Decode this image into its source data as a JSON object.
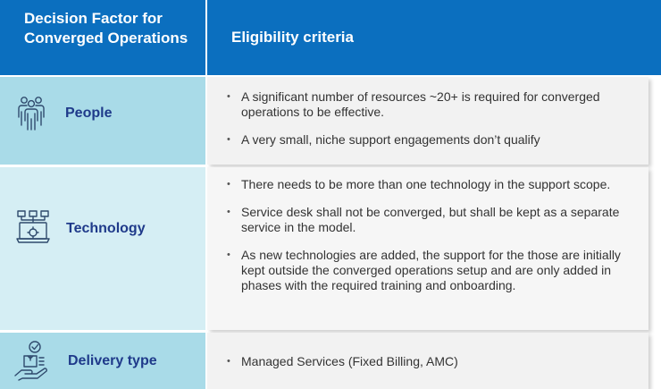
{
  "header": {
    "factor_label": "Decision Factor for Converged Operations",
    "criteria_label": "Eligibility criteria"
  },
  "rows": [
    {
      "factor": "People",
      "icon": "people-group-icon",
      "criteria": [
        "A significant number of resources ~20+ is required for converged operations to be effective.",
        "A very small, niche support engagements don’t qualify"
      ]
    },
    {
      "factor": "Technology",
      "icon": "laptop-network-icon",
      "criteria": [
        "There needs to be more than one technology in the support scope.",
        "Service desk shall not be converged, but shall be kept as a separate service in the model.",
        "As new technologies are added, the support for the those are initially kept outside the converged operations setup and are only added in phases with the required training and onboarding."
      ]
    },
    {
      "factor": "Delivery type",
      "icon": "hand-delivery-box-icon",
      "criteria": [
        "Managed Services (Fixed Billing, AMC)"
      ]
    }
  ],
  "colors": {
    "header_bg": "#0b6fbf",
    "factor_text": "#1f3a8a",
    "row_dark": "#a9dbe8",
    "row_light": "#d5eef4"
  }
}
